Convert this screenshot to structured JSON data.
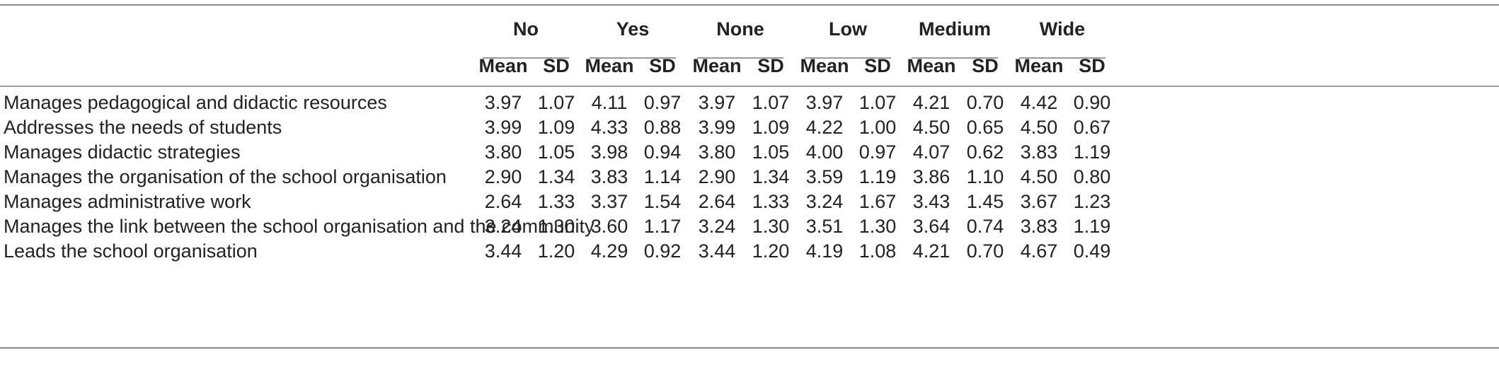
{
  "groups": [
    "No",
    "Yes",
    "None",
    "Low",
    "Medium",
    "Wide"
  ],
  "sub_headers": {
    "mean": "Mean",
    "sd": "SD"
  },
  "rows": [
    {
      "label": "Manages pedagogical and didactic resources",
      "values": [
        "3.97",
        "1.07",
        "4.11",
        "0.97",
        "3.97",
        "1.07",
        "3.97",
        "1.07",
        "4.21",
        "0.70",
        "4.42",
        "0.90"
      ]
    },
    {
      "label": "Addresses the needs of students",
      "values": [
        "3.99",
        "1.09",
        "4.33",
        "0.88",
        "3.99",
        "1.09",
        "4.22",
        "1.00",
        "4.50",
        "0.65",
        "4.50",
        "0.67"
      ]
    },
    {
      "label": "Manages didactic strategies",
      "values": [
        "3.80",
        "1.05",
        "3.98",
        "0.94",
        "3.80",
        "1.05",
        "4.00",
        "0.97",
        "4.07",
        "0.62",
        "3.83",
        "1.19"
      ]
    },
    {
      "label": "Manages the organisation of the school organisation",
      "values": [
        "2.90",
        "1.34",
        "3.83",
        "1.14",
        "2.90",
        "1.34",
        "3.59",
        "1.19",
        "3.86",
        "1.10",
        "4.50",
        "0.80"
      ]
    },
    {
      "label": "Manages administrative work",
      "values": [
        "2.64",
        "1.33",
        "3.37",
        "1.54",
        "2.64",
        "1.33",
        "3.24",
        "1.67",
        "3.43",
        "1.45",
        "3.67",
        "1.23"
      ]
    },
    {
      "label": "Manages the link between the school organisation and the community",
      "values": [
        "3.24",
        "1.30",
        "3.60",
        "1.17",
        "3.24",
        "1.30",
        "3.51",
        "1.30",
        "3.64",
        "0.74",
        "3.83",
        "1.19"
      ]
    },
    {
      "label": "Leads the school organisation",
      "values": [
        "3.44",
        "1.20",
        "4.29",
        "0.92",
        "3.44",
        "1.20",
        "4.19",
        "1.08",
        "4.21",
        "0.70",
        "4.67",
        "0.49"
      ]
    }
  ]
}
